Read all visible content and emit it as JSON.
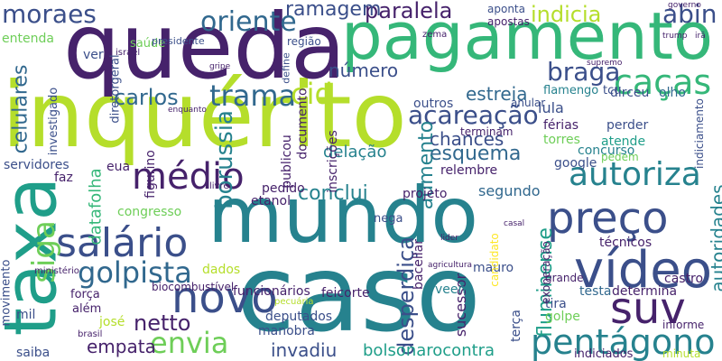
{
  "palette": {
    "purple": "#46226b",
    "darkblue": "#3b4f8a",
    "blue": "#31688e",
    "teal": "#26828e",
    "green": "#1f9e89",
    "lightgreen": "#35b779",
    "lime": "#6ece58",
    "yellowgreen": "#b5de2b",
    "yellow": "#fde725"
  },
  "words": [
    "inquérito",
    "caso",
    "mundo",
    "queda",
    "pagamento",
    "taxa",
    "preço",
    "vídeo",
    "salário",
    "novo",
    "suv",
    "siga",
    "médio",
    "golpista",
    "caças",
    "envia",
    "pentágono",
    "autoriza",
    "trama",
    "oriente",
    "moraes",
    "paralela",
    "abin",
    "indicia",
    "acareação",
    "ramagem",
    "cid",
    "netto",
    "braga",
    "estreia",
    "número",
    "carlos",
    "celulares",
    "conclui",
    "esquema",
    "chances",
    "aumento",
    "borussia",
    "delação",
    "desperdiça",
    "fluminense",
    "autoridades",
    "bolsonarocontra",
    "invadiu",
    "funcionários",
    "empata",
    "deputados",
    "manobra",
    "segundo",
    "projeto",
    "datafolha",
    "lula",
    "dirceu",
    "olho",
    "tcu",
    "flamengo",
    "férias",
    "torres",
    "perder",
    "atende",
    "pedem",
    "concurso",
    "google",
    "relembre",
    "terminam",
    "feicorte",
    "bacellar",
    "sucessor",
    "veem",
    "mauro",
    "testa",
    "determina",
    "informe",
    "castro",
    "técnicos",
    "tira",
    "golpe",
    "grande",
    "terça",
    "josé",
    "além",
    "força",
    "mil",
    "saiba",
    "movimento",
    "servidores",
    "faz",
    "congresso",
    "dados",
    "etanol",
    "pedido",
    "figurino",
    "eua",
    "investigado",
    "entenda",
    "ver",
    "saúde",
    "diretorgeral",
    "presidente",
    "israel",
    "ministério",
    "região",
    "aponta",
    "apostas",
    "biocombustível",
    "brasil",
    "pecuária",
    "agricultura",
    "livre",
    "exoneração",
    "minuta",
    "indiciados",
    "anular",
    "outros",
    "publicou",
    "documento",
    "inscrições",
    "candidato",
    "nega",
    "lider",
    "casal",
    "indiciamento",
    "supremo",
    "governo",
    "trump",
    "irã",
    "gripe",
    "zema",
    "define",
    "enquanto"
  ]
}
